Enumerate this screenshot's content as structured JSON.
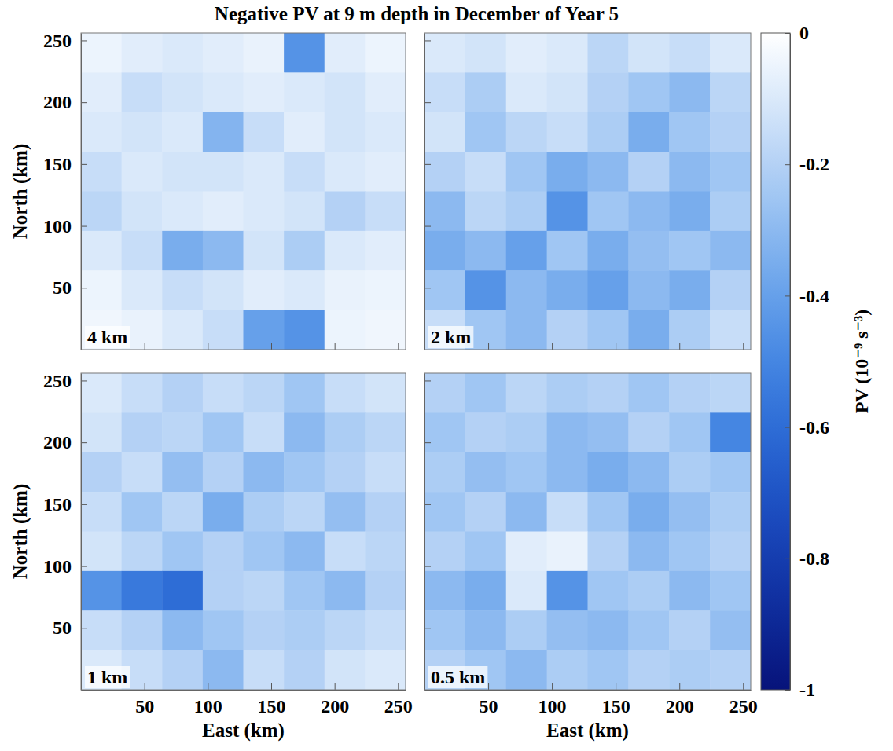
{
  "chart_data": {
    "type": "heatmap",
    "title": "Negative PV at 9 m depth in December of Year 5",
    "xlabel": "East (km)",
    "ylabel": "North (km)",
    "xlim": [
      0,
      256
    ],
    "ylim": [
      0,
      256
    ],
    "xticks": [
      50,
      100,
      150,
      200,
      250
    ],
    "yticks": [
      50,
      100,
      150,
      200,
      250
    ],
    "x": [
      16,
      48,
      80,
      112,
      144,
      176,
      208,
      240
    ],
    "y": [
      240,
      208,
      176,
      144,
      112,
      80,
      48,
      16
    ],
    "colorbar": {
      "label": "PV (10⁻⁹ s⁻³)",
      "range": [
        -1,
        0
      ],
      "ticks": [
        0,
        -0.2,
        -0.4,
        -0.6,
        -0.8,
        -1
      ]
    },
    "panels": [
      {
        "label": "4 km",
        "values": [
          [
            -0.05,
            -0.08,
            -0.1,
            -0.08,
            -0.06,
            -0.45,
            -0.08,
            -0.05
          ],
          [
            -0.08,
            -0.15,
            -0.12,
            -0.1,
            -0.08,
            -0.1,
            -0.12,
            -0.08
          ],
          [
            -0.1,
            -0.12,
            -0.1,
            -0.32,
            -0.15,
            -0.08,
            -0.12,
            -0.1
          ],
          [
            -0.15,
            -0.1,
            -0.12,
            -0.12,
            -0.1,
            -0.15,
            -0.1,
            -0.08
          ],
          [
            -0.18,
            -0.12,
            -0.1,
            -0.08,
            -0.1,
            -0.12,
            -0.2,
            -0.15
          ],
          [
            -0.1,
            -0.15,
            -0.35,
            -0.3,
            -0.12,
            -0.22,
            -0.1,
            -0.08
          ],
          [
            -0.05,
            -0.1,
            -0.15,
            -0.12,
            -0.08,
            -0.1,
            -0.06,
            -0.05
          ],
          [
            -0.04,
            -0.06,
            -0.1,
            -0.15,
            -0.4,
            -0.45,
            -0.05,
            -0.04
          ]
        ]
      },
      {
        "label": "2 km",
        "values": [
          [
            -0.1,
            -0.12,
            -0.08,
            -0.1,
            -0.18,
            -0.12,
            -0.15,
            -0.1
          ],
          [
            -0.15,
            -0.22,
            -0.1,
            -0.12,
            -0.2,
            -0.25,
            -0.3,
            -0.18
          ],
          [
            -0.12,
            -0.25,
            -0.18,
            -0.15,
            -0.22,
            -0.35,
            -0.25,
            -0.2
          ],
          [
            -0.2,
            -0.15,
            -0.25,
            -0.35,
            -0.3,
            -0.2,
            -0.3,
            -0.25
          ],
          [
            -0.3,
            -0.18,
            -0.22,
            -0.45,
            -0.25,
            -0.3,
            -0.35,
            -0.22
          ],
          [
            -0.35,
            -0.3,
            -0.4,
            -0.25,
            -0.35,
            -0.28,
            -0.25,
            -0.3
          ],
          [
            -0.25,
            -0.45,
            -0.3,
            -0.35,
            -0.4,
            -0.3,
            -0.35,
            -0.2
          ],
          [
            -0.15,
            -0.25,
            -0.3,
            -0.2,
            -0.25,
            -0.35,
            -0.22,
            -0.15
          ]
        ]
      },
      {
        "label": "1 km",
        "values": [
          [
            -0.1,
            -0.15,
            -0.2,
            -0.15,
            -0.18,
            -0.25,
            -0.15,
            -0.12
          ],
          [
            -0.12,
            -0.2,
            -0.18,
            -0.25,
            -0.15,
            -0.3,
            -0.22,
            -0.18
          ],
          [
            -0.2,
            -0.15,
            -0.28,
            -0.2,
            -0.3,
            -0.25,
            -0.2,
            -0.15
          ],
          [
            -0.15,
            -0.25,
            -0.18,
            -0.35,
            -0.22,
            -0.18,
            -0.28,
            -0.2
          ],
          [
            -0.12,
            -0.18,
            -0.25,
            -0.2,
            -0.25,
            -0.3,
            -0.15,
            -0.18
          ],
          [
            -0.45,
            -0.55,
            -0.6,
            -0.2,
            -0.18,
            -0.25,
            -0.3,
            -0.2
          ],
          [
            -0.15,
            -0.2,
            -0.3,
            -0.25,
            -0.2,
            -0.22,
            -0.18,
            -0.15
          ],
          [
            -0.1,
            -0.15,
            -0.2,
            -0.3,
            -0.15,
            -0.2,
            -0.12,
            -0.1
          ]
        ]
      },
      {
        "label": "0.5 km",
        "values": [
          [
            -0.2,
            -0.25,
            -0.18,
            -0.22,
            -0.2,
            -0.25,
            -0.2,
            -0.18
          ],
          [
            -0.25,
            -0.2,
            -0.22,
            -0.3,
            -0.28,
            -0.2,
            -0.25,
            -0.5
          ],
          [
            -0.22,
            -0.28,
            -0.25,
            -0.3,
            -0.35,
            -0.3,
            -0.22,
            -0.25
          ],
          [
            -0.25,
            -0.2,
            -0.3,
            -0.15,
            -0.25,
            -0.35,
            -0.28,
            -0.22
          ],
          [
            -0.2,
            -0.25,
            -0.08,
            -0.06,
            -0.2,
            -0.3,
            -0.25,
            -0.2
          ],
          [
            -0.3,
            -0.35,
            -0.1,
            -0.45,
            -0.25,
            -0.22,
            -0.3,
            -0.25
          ],
          [
            -0.25,
            -0.3,
            -0.22,
            -0.28,
            -0.3,
            -0.25,
            -0.2,
            -0.28
          ],
          [
            -0.2,
            -0.25,
            -0.3,
            -0.22,
            -0.25,
            -0.2,
            -0.22,
            -0.2
          ]
        ]
      }
    ]
  }
}
